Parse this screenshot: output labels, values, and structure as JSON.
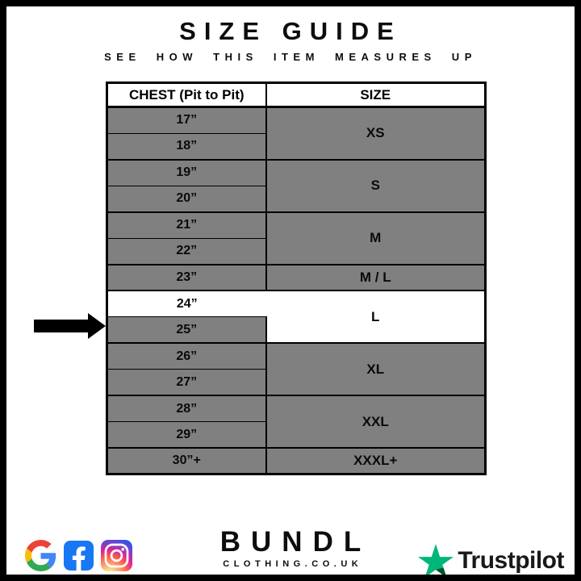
{
  "page": {
    "title": "SIZE GUIDE",
    "subtitle": "SEE HOW THIS ITEM MEASURES UP"
  },
  "table": {
    "headers": [
      "CHEST (Pit to Pit)",
      "SIZE"
    ],
    "groups": [
      {
        "size": "XS",
        "chest": [
          "17”",
          "18”"
        ],
        "highlighted": false
      },
      {
        "size": "S",
        "chest": [
          "19”",
          "20”"
        ],
        "highlighted": false
      },
      {
        "size": "M",
        "chest": [
          "21”",
          "22”"
        ],
        "highlighted": false
      },
      {
        "size": "M / L",
        "chest": [
          "23”"
        ],
        "highlighted": false
      },
      {
        "size": "L",
        "chest": [
          "24”",
          "25”"
        ],
        "highlighted": true,
        "highlighted_chest": "24”"
      },
      {
        "size": "XL",
        "chest": [
          "26”",
          "27”"
        ],
        "highlighted": false
      },
      {
        "size": "XXL",
        "chest": [
          "28”",
          "29”"
        ],
        "highlighted": false
      },
      {
        "size": "XXXL+",
        "chest": [
          "30”+"
        ],
        "highlighted": false
      }
    ],
    "selected_size": "L",
    "selected_chest": "24”"
  },
  "footer": {
    "brand_name": "BUNDL",
    "brand_sub": "CLOTHING.CO.UK",
    "trustpilot_label": "Trustpilot",
    "social_icons": [
      "google-icon",
      "facebook-icon",
      "instagram-icon"
    ]
  },
  "colors": {
    "row_gray": "#808080",
    "highlight_white": "#ffffff",
    "border_black": "#000000",
    "facebook_blue": "#1877F2",
    "trustpilot_green": "#00B67A",
    "trustpilot_dark_green": "#005128",
    "google_palette": [
      "#4285F4",
      "#EA4335",
      "#FBBC05",
      "#34A853"
    ],
    "instagram_gradient": [
      "#fdf497",
      "#fd5949",
      "#d6249f",
      "#285AEB"
    ]
  }
}
